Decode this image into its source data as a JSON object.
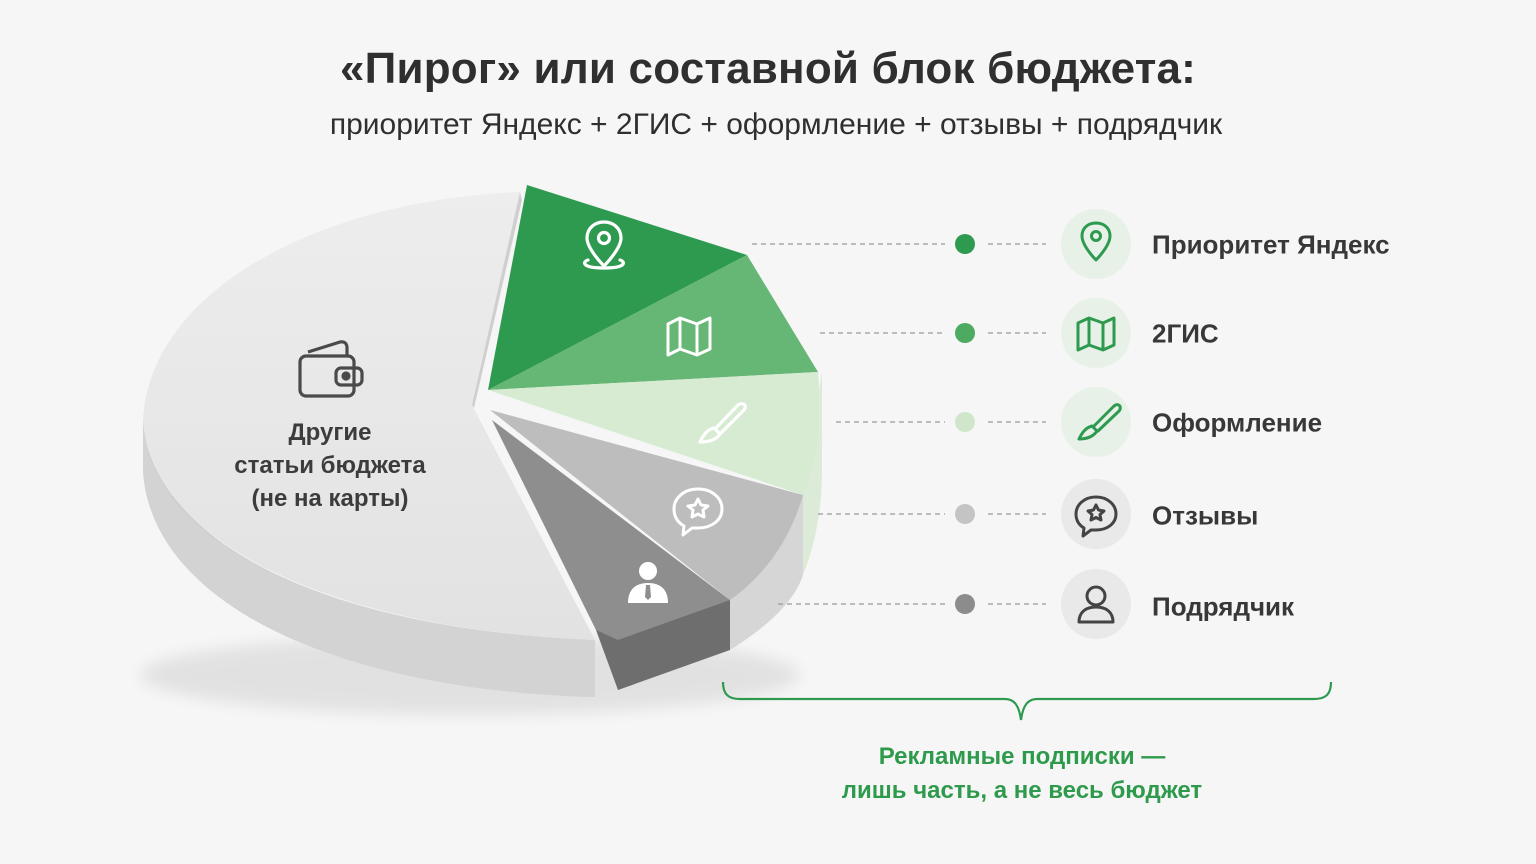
{
  "header": {
    "title": "«Пирог» или составной блок бюджета:",
    "subtitle": "приоритет Яндекс + 2ГИС + оформление + отзывы + подрядчик"
  },
  "chart_data": {
    "type": "pie",
    "values_labeled": false,
    "slices": [
      {
        "label": "Приоритет Яндекс",
        "share_estimate": 0.1,
        "color": "#2e9a4f",
        "icon": "map-pin-icon"
      },
      {
        "label": "2ГИС",
        "share_estimate": 0.08,
        "color": "#66b675",
        "icon": "folded-map-icon"
      },
      {
        "label": "Оформление",
        "share_estimate": 0.07,
        "color": "#d6ebd2",
        "icon": "paintbrush-icon"
      },
      {
        "label": "Отзывы",
        "share_estimate": 0.07,
        "color": "#bdbdbd",
        "icon": "speech-bubble-star-icon"
      },
      {
        "label": "Подрядчик",
        "share_estimate": 0.07,
        "color": "#8e8e8e",
        "icon": "person-icon"
      },
      {
        "label": "Другие статьи бюджета (не на карты)",
        "share_estimate": 0.61,
        "color": "#e4e4e4",
        "icon": "wallet-icon"
      }
    ],
    "legend_placement": "right"
  },
  "legend": {
    "items": [
      {
        "label": "Приоритет Яндекс",
        "dot_color": "#2e9a4f",
        "icon": "map-pin-icon"
      },
      {
        "label": "2ГИС",
        "dot_color": "#4daa61",
        "icon": "folded-map-icon"
      },
      {
        "label": "Оформление",
        "dot_color": "#cfe6cb",
        "icon": "paintbrush-icon"
      },
      {
        "label": "Отзывы",
        "dot_color": "#c4c4c4",
        "icon": "speech-bubble-star-icon"
      },
      {
        "label": "Подрядчик",
        "dot_color": "#8c8c8c",
        "icon": "person-icon"
      }
    ]
  },
  "other_slice": {
    "line1": "Другие",
    "line2": "статьи бюджета",
    "line3": "(не на карты)",
    "icon": "wallet-icon"
  },
  "note": {
    "line1": "Рекламные подписки —",
    "line2": "лишь часть, а не весь бюджет",
    "color": "#2e9a4c"
  },
  "colors": {
    "accent_green": "#2e9a4f",
    "background": "#f6f6f6",
    "text": "#2f2f2f"
  }
}
